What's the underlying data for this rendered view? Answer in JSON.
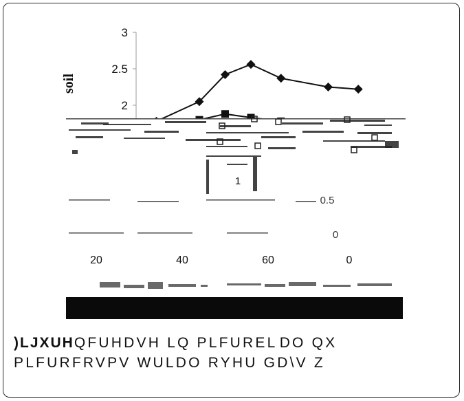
{
  "chart_data": {
    "type": "line",
    "ylabel": "soil",
    "yticks": [
      "3",
      "2.5",
      "2"
    ],
    "lower_ticks": [
      "0.5",
      "0"
    ],
    "xticks": [
      "20",
      "40",
      "60",
      "0"
    ],
    "inner_label": "1",
    "ylim": [
      0,
      3
    ],
    "xlim": [
      10,
      85
    ],
    "series": [
      {
        "marker": "diamond",
        "x": [
          24,
          34,
          44,
          50,
          56,
          63,
          74,
          81
        ],
        "y": [
          1.75,
          1.78,
          2.05,
          2.42,
          2.56,
          2.37,
          2.25,
          2.22
        ]
      },
      {
        "marker": "square",
        "x": [
          24,
          34,
          44,
          50,
          56,
          63,
          74,
          81
        ],
        "y": [
          1.72,
          1.75,
          1.8,
          1.88,
          1.83,
          1.78,
          1.75,
          1.72
        ]
      }
    ],
    "colors": {
      "line": "#111111",
      "axis": "#9a9a9a",
      "bar": "#0a0a0a"
    }
  },
  "caption": {
    "lead": ")LJXUH",
    "line1": "QFUHDVH LQ PLFUREL\u0003DO QX",
    "line2": "PLFURFRVPV WULDO RYHU   GD\\V Z"
  }
}
